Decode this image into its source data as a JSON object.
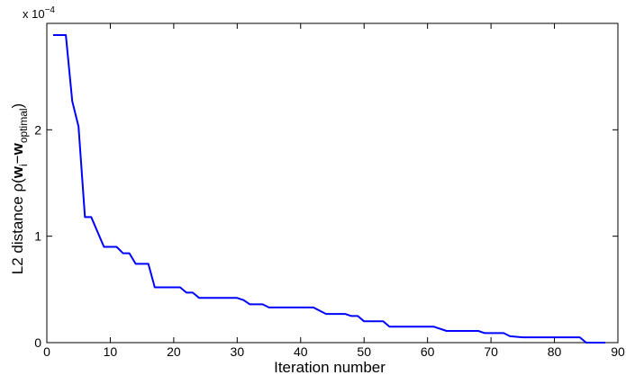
{
  "chart_data": {
    "type": "line",
    "xlabel": "Iteration number",
    "ylabel": {
      "prefix": "L2 distance ρ(",
      "w": "w",
      "sub_i": "i",
      "minus": "−",
      "w2": "w",
      "sub_opt": "optimal",
      "suffix": ")"
    },
    "y_exponent": {
      "base": "x 10",
      "power": "−4"
    },
    "xlim": [
      0,
      90
    ],
    "ylim": [
      0,
      3.0
    ],
    "x_ticks": [
      0,
      10,
      20,
      30,
      40,
      50,
      60,
      70,
      80,
      90
    ],
    "y_ticks": [
      0,
      1,
      2
    ],
    "grid": false,
    "line_color": "#0000ff",
    "series": [
      {
        "x": [
          1,
          3,
          4,
          5,
          6,
          7,
          9,
          11,
          12,
          13,
          14,
          16,
          17,
          21,
          22,
          23,
          24,
          30,
          31,
          32,
          34,
          35,
          42,
          44,
          47,
          48,
          49,
          50,
          53,
          54,
          61,
          63,
          68,
          69,
          72,
          73,
          75,
          84,
          85,
          88
        ],
        "y": [
          2.89,
          2.89,
          2.27,
          2.03,
          1.18,
          1.18,
          0.9,
          0.9,
          0.84,
          0.84,
          0.74,
          0.74,
          0.52,
          0.52,
          0.47,
          0.47,
          0.42,
          0.42,
          0.4,
          0.36,
          0.36,
          0.33,
          0.33,
          0.27,
          0.27,
          0.25,
          0.25,
          0.2,
          0.2,
          0.15,
          0.15,
          0.11,
          0.11,
          0.09,
          0.09,
          0.06,
          0.05,
          0.05,
          0.0,
          0.0
        ]
      }
    ]
  }
}
